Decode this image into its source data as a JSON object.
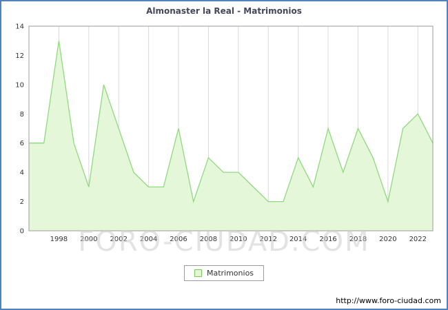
{
  "window": {
    "title": "Almonaster la Real - Matrimonios"
  },
  "chart_data": {
    "type": "area",
    "title": "Almonaster la Real - Matrimonios",
    "xlabel": "",
    "ylabel": "",
    "x": [
      1996,
      1997,
      1998,
      1999,
      2000,
      2001,
      2002,
      2003,
      2004,
      2005,
      2006,
      2007,
      2008,
      2009,
      2010,
      2011,
      2012,
      2013,
      2014,
      2015,
      2016,
      2017,
      2018,
      2019,
      2020,
      2021,
      2022,
      2023
    ],
    "values": [
      6,
      6,
      13,
      6,
      3,
      10,
      7,
      4,
      3,
      3,
      7,
      2,
      5,
      4,
      4,
      3,
      2,
      2,
      5,
      3,
      7,
      4,
      7,
      5,
      2,
      7,
      8,
      6
    ],
    "series_name": "Matrimonios",
    "x_range": [
      1996,
      2023
    ],
    "y_range": [
      0,
      14
    ],
    "y_ticks": [
      0,
      2,
      4,
      6,
      8,
      10,
      12,
      14
    ],
    "x_ticks": [
      1998,
      2000,
      2002,
      2004,
      2006,
      2008,
      2010,
      2012,
      2014,
      2016,
      2018,
      2020,
      2022
    ],
    "legend": [
      "Matrimonios"
    ],
    "legend_position": "bottom-center",
    "grid": "vertical-only",
    "colors": {
      "line": "#8fd97f",
      "fill": "#e4f7d9",
      "grid": "#d9d9d9",
      "frame": "#9a9a9a",
      "tick_text": "#333333",
      "border": "#4f81bd"
    }
  },
  "watermark": "FORO-CIUDAD.COM",
  "footer": {
    "url": "http://www.foro-ciudad.com"
  }
}
